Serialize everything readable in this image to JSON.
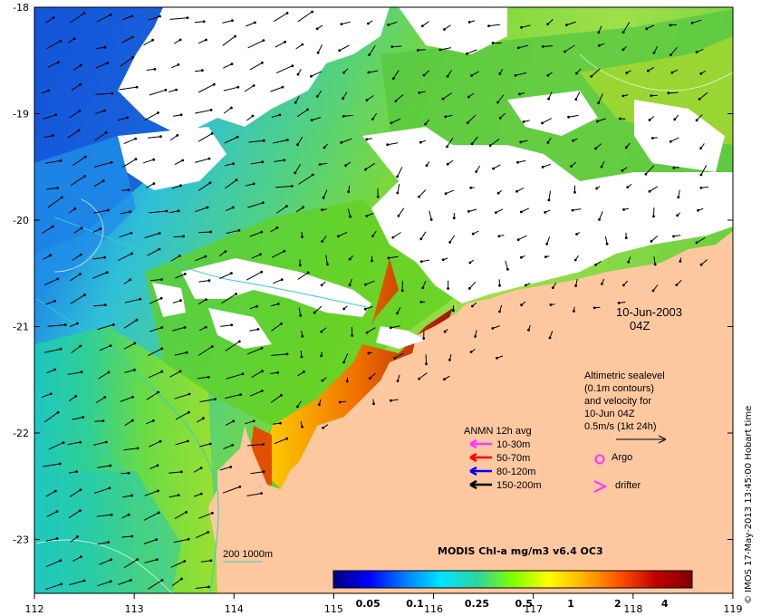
{
  "map": {
    "lat_ticks": [
      "-18",
      "-19",
      "-20",
      "-21",
      "-22",
      "-23"
    ],
    "lon_ticks": [
      "112",
      "113",
      "114",
      "115",
      "116",
      "117",
      "118",
      "119"
    ],
    "date_line1": "10-Jun-2003",
    "date_line2": "04Z",
    "sealevel_note": [
      "Altimetric sealevel",
      "(0.1m contours)",
      "and velocity for",
      "10-Jun 04Z",
      "0.5m/s (1kt 24h)"
    ],
    "anmn_title": "ANMN 12h avg",
    "anmn_legend": [
      {
        "label": "10-30m",
        "color": "#ff33ff"
      },
      {
        "label": "50-70m",
        "color": "#ff0000"
      },
      {
        "label": "80-120m",
        "color": "#0000ff"
      },
      {
        "label": "150-200m",
        "color": "#000000"
      }
    ],
    "argo_label": "Argo",
    "drifter_label": "drifter",
    "argo_color": "#ff33ff",
    "drifter_color": "#ff33ff",
    "isobath_label": "200  1000m",
    "isobath_color": "#33cccc",
    "colorbar_title": "MODIS Chl-a mg/m3 v6.4 OC3",
    "colorbar_ticks": [
      "0.05",
      "0.1",
      "0.25",
      "0.5",
      "1",
      "2",
      "4"
    ],
    "colorbar_colors": [
      "#00007f",
      "#0000ff",
      "#007fff",
      "#00e5ff",
      "#2bd4a0",
      "#7fff00",
      "#ffff00",
      "#ffb000",
      "#ff5000",
      "#c00000",
      "#7f0000"
    ],
    "credit": "© IMOS 17-May-2013 13:45:00 Hobart time",
    "land_color": "#fdc8a0",
    "cloud_color": "#ffffff"
  }
}
